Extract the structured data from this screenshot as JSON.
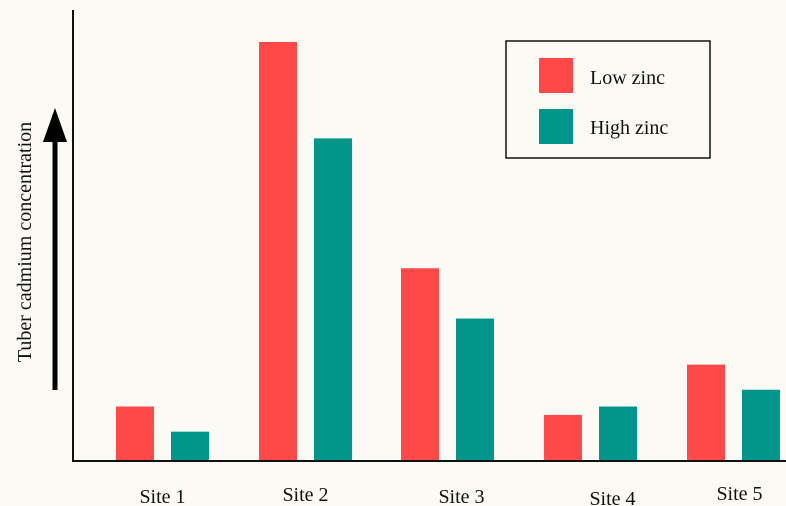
{
  "chart_data": {
    "type": "bar",
    "categories": [
      "Site 1",
      "Site 2",
      "Site 3",
      "Site 4",
      "Site 5"
    ],
    "series": [
      {
        "name": "Low zinc",
        "values": [
          13,
          100,
          46,
          11,
          23
        ]
      },
      {
        "name": "High zinc",
        "values": [
          7,
          77,
          34,
          13,
          17
        ]
      }
    ],
    "xlabel": "",
    "ylabel": "Tuber cadmium concentration",
    "ylim": [
      0,
      100
    ],
    "grid": false,
    "y_ticks_shown": false,
    "legend": {
      "placement": "top-right",
      "boxed": true
    },
    "colors": {
      "Low zinc": "#ff4848",
      "High zinc": "#00968c"
    }
  }
}
